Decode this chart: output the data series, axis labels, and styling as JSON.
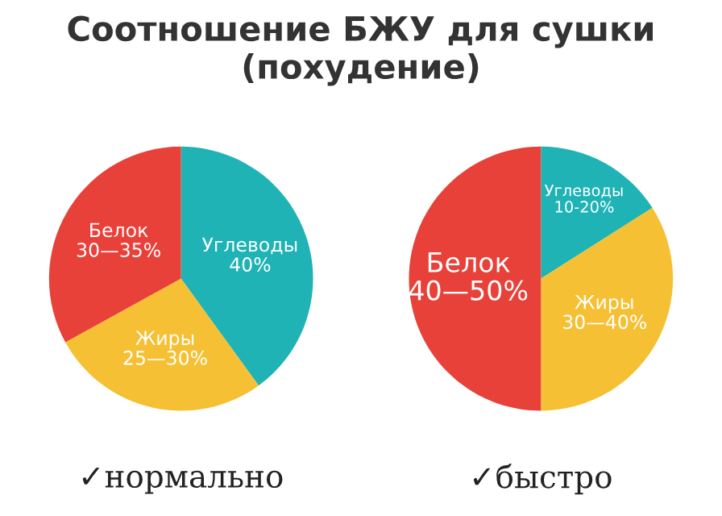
{
  "chart_data": [
    {
      "type": "pie",
      "title": "Соотношение БЖУ для сушки (похудение)",
      "xlabel": "✓нормально",
      "categories": [
        "Углеводы",
        "Жиры",
        "Белок"
      ],
      "values": [
        40,
        27,
        33
      ],
      "colors": [
        "#1fb3b5",
        "#f5c033",
        "#e8413a"
      ],
      "annotations": [
        "40%",
        "25—30%",
        "30—35%"
      ]
    },
    {
      "type": "pie",
      "xlabel": "✓быстро",
      "categories": [
        "Углеводы",
        "Жиры",
        "Белок"
      ],
      "values": [
        16,
        34,
        50
      ],
      "colors": [
        "#1fb3b5",
        "#f5c033",
        "#e8413a"
      ],
      "annotations": [
        "10-20%",
        "30—40%",
        "40—50%"
      ]
    }
  ]
}
